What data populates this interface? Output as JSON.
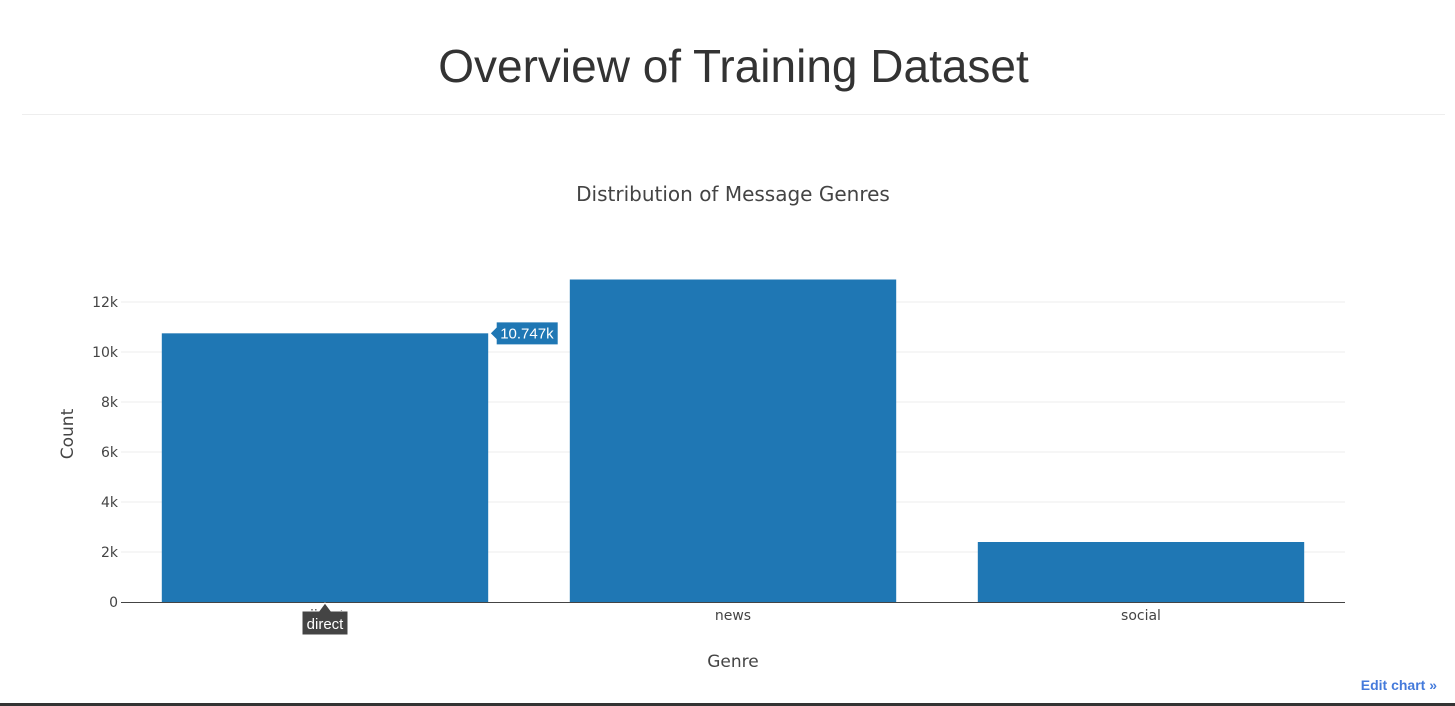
{
  "page": {
    "title": "Overview of Training Dataset",
    "edit_link": "Edit chart »"
  },
  "chart_data": {
    "type": "bar",
    "title": "Distribution of Message Genres",
    "xlabel": "Genre",
    "ylabel": "Count",
    "categories": [
      "direct",
      "news",
      "social"
    ],
    "values": [
      10747,
      12900,
      2400
    ],
    "ylim": [
      0,
      13000
    ],
    "yticks": [
      0,
      2000,
      4000,
      6000,
      8000,
      10000,
      12000
    ],
    "ytick_labels": [
      "0",
      "2k",
      "4k",
      "6k",
      "8k",
      "10k",
      "12k"
    ],
    "grid": true,
    "bar_color": "#1f77b4",
    "hover": {
      "category": "direct",
      "value_label": "10.747k"
    }
  }
}
